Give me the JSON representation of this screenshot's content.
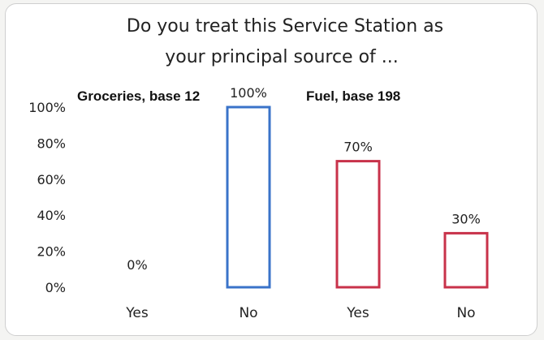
{
  "chart_data": {
    "type": "bar",
    "title_lines": [
      "Do you treat this Service Station as",
      "your principal source of ..."
    ],
    "xlabel": "",
    "ylabel": "",
    "ylim": [
      0,
      100
    ],
    "y_ticks": [
      "100%",
      "80%",
      "60%",
      "40%",
      "20%",
      "0%"
    ],
    "y_tick_values": [
      100,
      80,
      60,
      40,
      20,
      0
    ],
    "grid": false,
    "groups": [
      {
        "label": "Groceries, base 12",
        "color": "#3a73c9"
      },
      {
        "label": "Fuel, base 198",
        "color": "#c8324a"
      }
    ],
    "bars": [
      {
        "group": 0,
        "category": "Yes",
        "value": 0,
        "label": "0%"
      },
      {
        "group": 0,
        "category": "No",
        "value": 100,
        "label": "100%"
      },
      {
        "group": 1,
        "category": "Yes",
        "value": 70,
        "label": "70%"
      },
      {
        "group": 1,
        "category": "No",
        "value": 30,
        "label": "30%"
      }
    ]
  }
}
